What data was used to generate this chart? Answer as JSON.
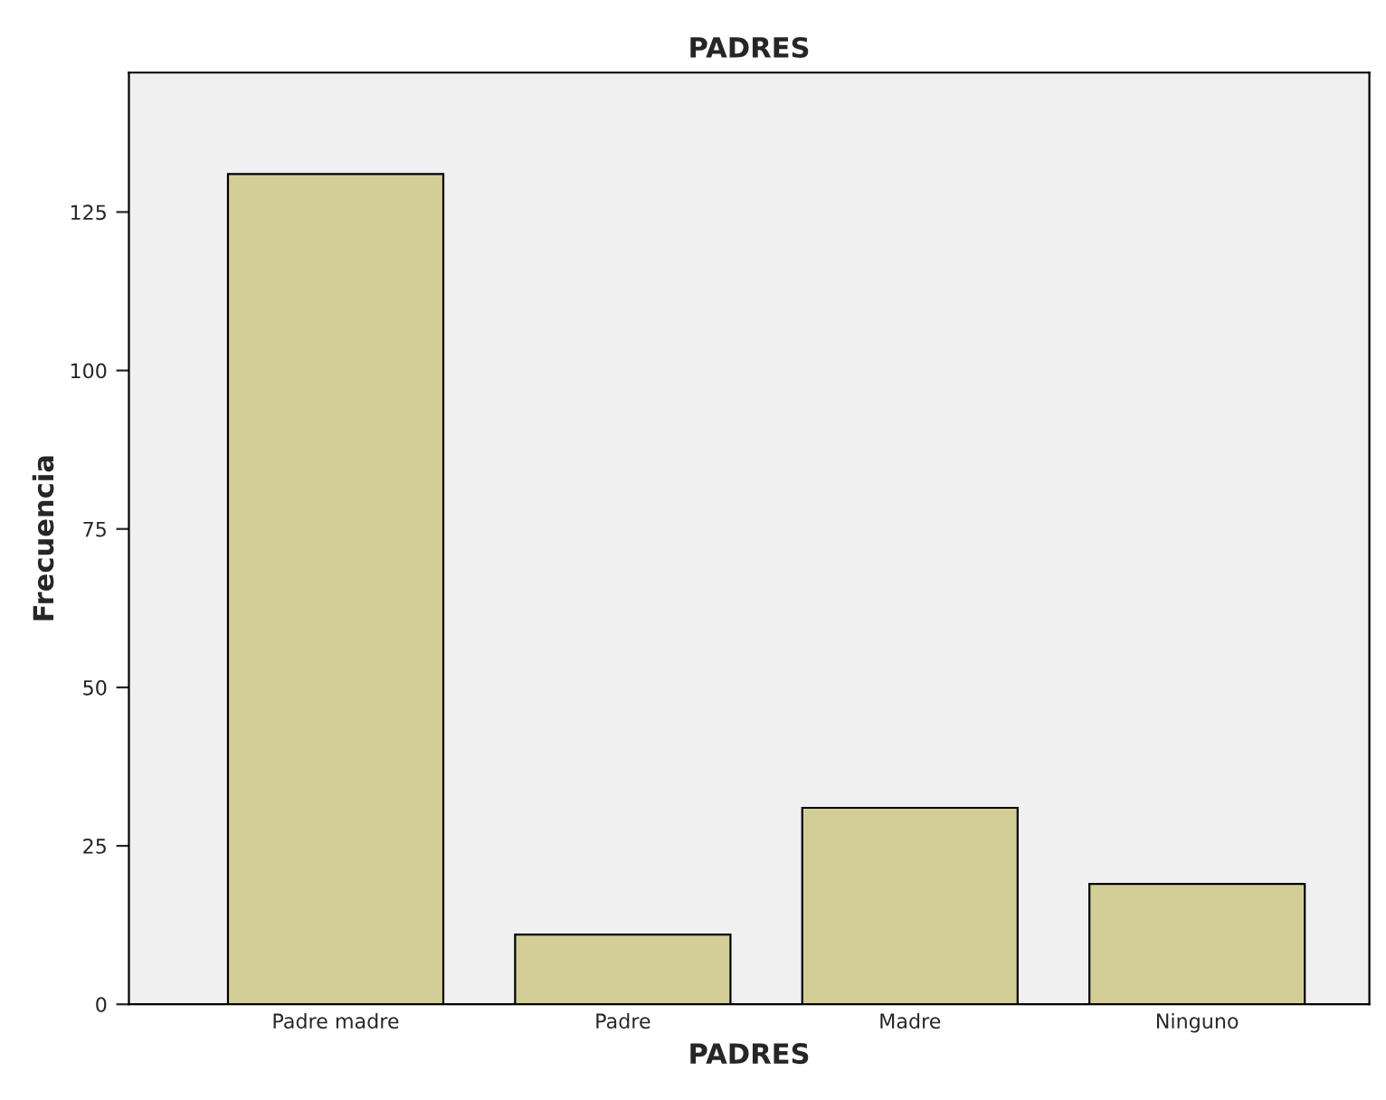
{
  "chart_data": {
    "type": "bar",
    "title": "PADRES",
    "xlabel": "PADRES",
    "ylabel": "Frecuencia",
    "categories": [
      "Padre madre",
      "Padre",
      "Madre",
      "Ninguno"
    ],
    "values": [
      131,
      11,
      31,
      19
    ],
    "color": "#d3ce97",
    "ylim": [
      0,
      147
    ],
    "yticks": [
      0,
      25,
      50,
      75,
      100,
      125
    ],
    "grid": false,
    "legend": false
  }
}
